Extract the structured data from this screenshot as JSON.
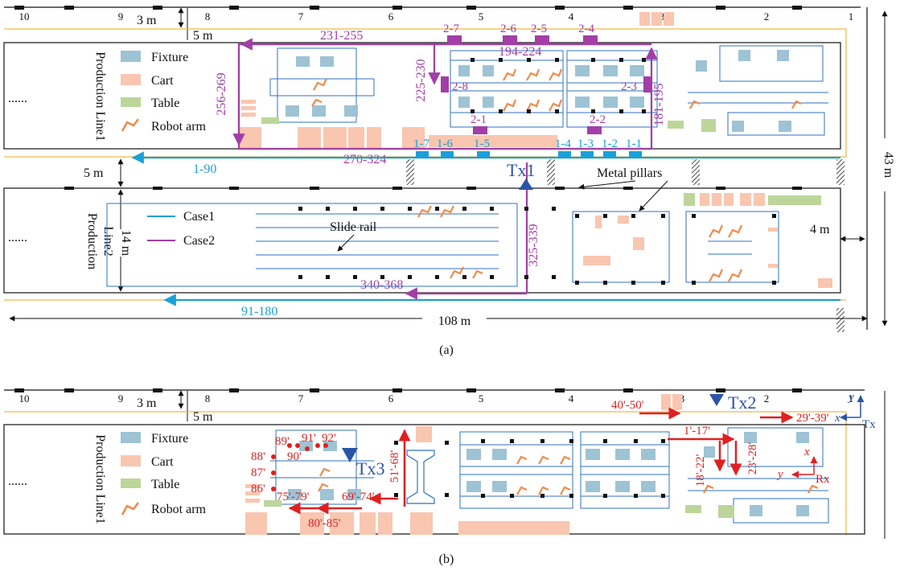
{
  "colors": {
    "fixture": "#9dc3d4",
    "cart": "#f9c6b0",
    "table": "#bcd69a",
    "robot": "#f08a4a",
    "case1": "#1aa0d8",
    "case2": "#a23ea6",
    "outline": "#2f72c4",
    "yellow": "#f2b84a",
    "red": "#e02020",
    "tx": "#2a55a8"
  },
  "bay_numbers": [
    "10",
    "9",
    "8",
    "7",
    "6",
    "5",
    "4",
    "3",
    "2",
    "1"
  ],
  "legend": {
    "fixture": "Fixture",
    "cart": "Cart",
    "table": "Table",
    "robot": "Robot arm",
    "case1": "Case1",
    "case2": "Case2"
  },
  "panel_a": {
    "caption": "(a)",
    "line1_label": "Production Line1",
    "line1_label_a": "Production",
    "line1_label_b": "Line1",
    "line2_label_a": "Production",
    "line2_label_b": "Line2",
    "ellipsis": "......",
    "dim_3m": "3 m",
    "dim_5m_top": "5 m",
    "dim_5m_mid": "5 m",
    "dim_14m": "14 m",
    "dim_4m": "4 m",
    "dim_108m": "108 m",
    "dim_43m": "43 m",
    "tx1": "Tx1",
    "metal_pillars": "Metal pillars",
    "slide_rail": "Slide rail",
    "case2_labels": {
      "r231": "231-255",
      "r256": "256-269",
      "r225": "225-230",
      "r181": "181-195",
      "r194": "194-224",
      "r270": "270-324",
      "r325": "325-339",
      "r340": "340-368",
      "p27": "2-7",
      "p26": "2-6",
      "p25": "2-5",
      "p24": "2-4",
      "p28": "2-8",
      "p23": "2-3",
      "p21": "2-1",
      "p22": "2-2"
    },
    "case1_labels": {
      "r1_90": "1-90",
      "r91_180": "91-180",
      "p17": "1-7",
      "p16": "1-6",
      "p15": "1-5",
      "p14": "1-4",
      "p13": "1-3",
      "p12": "1-2",
      "p11": "1-1"
    }
  },
  "panel_b": {
    "caption": "(b)",
    "tx2": "Tx2",
    "tx3": "Tx3",
    "rx": "Rx",
    "tx": "Tx",
    "axis_x": "x",
    "axis_y": "y",
    "labels": {
      "r40": "40'-50'",
      "r29": "29'-39'",
      "r1": "1'-17'",
      "r18": "18'-22'",
      "r23": "23'-28'",
      "r51": "51'-68'",
      "r69": "69'-74'",
      "r75": "75'-79'",
      "r80": "80'-85'",
      "r86": "86'",
      "r87": "87'",
      "r88": "88'",
      "r89": "89'",
      "r90": "90'",
      "r91": "91'",
      "r92": "92'"
    }
  }
}
